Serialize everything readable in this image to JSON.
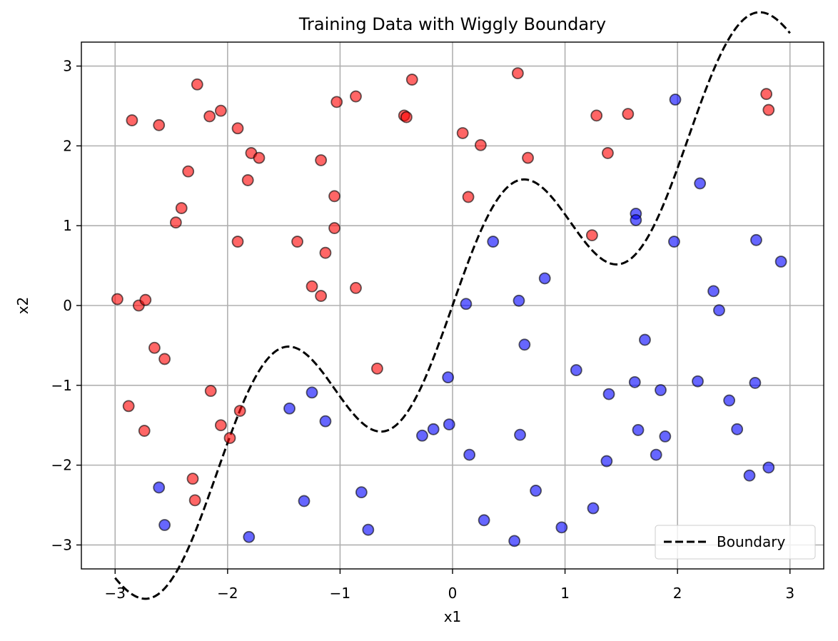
{
  "chart_data": {
    "type": "scatter",
    "title": "Training Data with Wiggly Boundary",
    "xlabel": "x1",
    "ylabel": "x2",
    "xlim": [
      -3.3,
      3.3
    ],
    "ylim": [
      -3.3,
      3.3
    ],
    "xticks": [
      -3,
      -2,
      -1,
      0,
      1,
      2,
      3
    ],
    "yticks": [
      -3,
      -2,
      -1,
      0,
      1,
      2,
      3
    ],
    "xtick_labels": [
      "−3",
      "−2",
      "−1",
      "0",
      "1",
      "2",
      "3"
    ],
    "ytick_labels": [
      "−3",
      "−2",
      "−1",
      "0",
      "1",
      "2",
      "3"
    ],
    "grid": true,
    "legend_position": "bottom-right",
    "colors": {
      "red": "#ff0000",
      "blue": "#0000ff",
      "boundary": "#000000",
      "edge": "#000000",
      "grid": "#b0b0b0"
    },
    "series": [
      {
        "color": "#ff0000",
        "points": [
          [
            -2.85,
            2.32
          ],
          [
            -2.27,
            2.77
          ],
          [
            -2.06,
            2.44
          ],
          [
            -2.16,
            2.37
          ],
          [
            -2.61,
            2.26
          ],
          [
            -1.91,
            2.22
          ],
          [
            -1.79,
            1.91
          ],
          [
            -1.72,
            1.85
          ],
          [
            -1.82,
            1.57
          ],
          [
            -2.35,
            1.68
          ],
          [
            -2.41,
            1.22
          ],
          [
            -2.46,
            1.04
          ],
          [
            -1.91,
            0.8
          ],
          [
            -2.98,
            0.08
          ],
          [
            -2.79,
            0.0
          ],
          [
            -2.73,
            0.07
          ],
          [
            -2.65,
            -0.53
          ],
          [
            -2.56,
            -0.67
          ],
          [
            -2.15,
            -1.07
          ],
          [
            -2.88,
            -1.26
          ],
          [
            -1.89,
            -1.32
          ],
          [
            -2.06,
            -1.5
          ],
          [
            -1.98,
            -1.66
          ],
          [
            -2.74,
            -1.57
          ],
          [
            -2.31,
            -2.17
          ],
          [
            -2.29,
            -2.44
          ],
          [
            -0.36,
            2.83
          ],
          [
            -0.86,
            2.62
          ],
          [
            -1.03,
            2.55
          ],
          [
            -0.43,
            2.38
          ],
          [
            -0.41,
            2.36
          ],
          [
            -1.17,
            1.82
          ],
          [
            -1.05,
            1.37
          ],
          [
            -1.05,
            0.97
          ],
          [
            -1.38,
            0.8
          ],
          [
            -1.13,
            0.66
          ],
          [
            -1.25,
            0.24
          ],
          [
            -1.17,
            0.12
          ],
          [
            -0.86,
            0.22
          ],
          [
            -0.67,
            -0.79
          ],
          [
            0.58,
            2.91
          ],
          [
            0.09,
            2.16
          ],
          [
            0.25,
            2.01
          ],
          [
            0.67,
            1.85
          ],
          [
            0.14,
            1.36
          ],
          [
            1.28,
            2.38
          ],
          [
            1.56,
            2.4
          ],
          [
            1.38,
            1.91
          ],
          [
            1.24,
            0.88
          ],
          [
            2.79,
            2.65
          ],
          [
            2.81,
            2.45
          ]
        ]
      },
      {
        "color": "#0000ff",
        "points": [
          [
            1.98,
            2.58
          ],
          [
            2.2,
            1.53
          ],
          [
            1.63,
            1.15
          ],
          [
            1.63,
            1.07
          ],
          [
            1.97,
            0.8
          ],
          [
            2.7,
            0.82
          ],
          [
            2.92,
            0.55
          ],
          [
            2.32,
            0.18
          ],
          [
            2.37,
            -0.06
          ],
          [
            0.36,
            0.8
          ],
          [
            0.82,
            0.34
          ],
          [
            0.59,
            0.06
          ],
          [
            0.12,
            0.02
          ],
          [
            0.64,
            -0.49
          ],
          [
            1.1,
            -0.81
          ],
          [
            1.71,
            -0.43
          ],
          [
            1.62,
            -0.96
          ],
          [
            1.85,
            -1.06
          ],
          [
            2.18,
            -0.95
          ],
          [
            2.69,
            -0.97
          ],
          [
            1.39,
            -1.11
          ],
          [
            2.46,
            -1.19
          ],
          [
            -0.04,
            -0.9
          ],
          [
            -1.25,
            -1.09
          ],
          [
            -1.45,
            -1.29
          ],
          [
            -1.13,
            -1.45
          ],
          [
            -0.17,
            -1.55
          ],
          [
            -0.27,
            -1.63
          ],
          [
            -0.03,
            -1.49
          ],
          [
            0.6,
            -1.62
          ],
          [
            1.65,
            -1.56
          ],
          [
            1.89,
            -1.64
          ],
          [
            2.53,
            -1.55
          ],
          [
            0.15,
            -1.87
          ],
          [
            1.37,
            -1.95
          ],
          [
            1.81,
            -1.87
          ],
          [
            2.64,
            -2.13
          ],
          [
            2.81,
            -2.03
          ],
          [
            -2.61,
            -2.28
          ],
          [
            -2.56,
            -2.75
          ],
          [
            -1.81,
            -2.9
          ],
          [
            -1.32,
            -2.45
          ],
          [
            -0.81,
            -2.34
          ],
          [
            -0.75,
            -2.81
          ],
          [
            0.28,
            -2.69
          ],
          [
            0.55,
            -2.95
          ],
          [
            0.74,
            -2.32
          ],
          [
            0.97,
            -2.78
          ],
          [
            1.25,
            -2.54
          ]
        ]
      }
    ],
    "boundary": {
      "label": "Boundary",
      "style": "dashed",
      "formula": "x2 = x1 + 1.0 * sin(3 * x1)",
      "x_range": [
        -3,
        3
      ]
    }
  }
}
